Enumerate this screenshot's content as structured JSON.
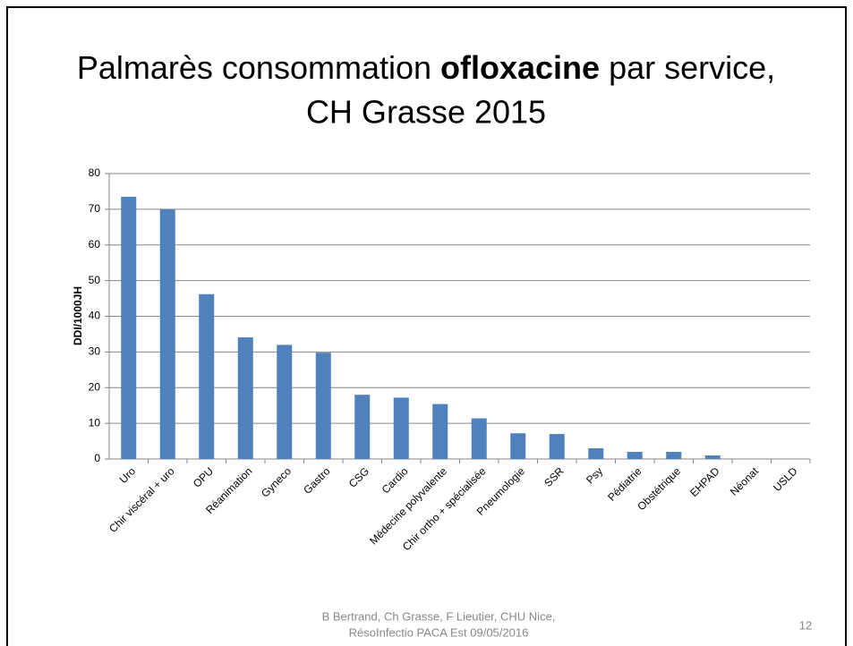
{
  "slide": {
    "title": [
      "Palmarès consommation ",
      "ofloxacine",
      " par service,",
      "CH Grasse 2015"
    ],
    "footer": [
      "B Bertrand, Ch Grasse, F Lieutier, CHU Nice,",
      "RésoInfectio PACA Est 09/05/2016"
    ],
    "page_number": "12"
  },
  "chart_data": {
    "type": "bar",
    "y_label": "DDI/1000JH",
    "categories": [
      "Uro",
      "Chir viscéral + uro",
      "OPU",
      "Réanimation",
      "Gyneco",
      "Gastro",
      "CSG",
      "Cardio",
      "Médecine polyvalente",
      "Chir ortho + spécialisée",
      "Pneumologie",
      "SSR",
      "Psy",
      "Pédiatrie",
      "Obstétrique",
      "EHPAD",
      "Néonat",
      "USLD"
    ],
    "values": [
      73.5,
      70,
      46.2,
      34.1,
      32,
      29.8,
      18,
      17.2,
      15.4,
      11.4,
      7.2,
      7,
      3,
      2,
      2,
      1,
      0,
      0
    ],
    "color": "#4f81bd",
    "ylim": [
      0,
      80
    ],
    "yticks": [
      0,
      10,
      20,
      30,
      40,
      50,
      60,
      70,
      80
    ],
    "grid": true
  }
}
